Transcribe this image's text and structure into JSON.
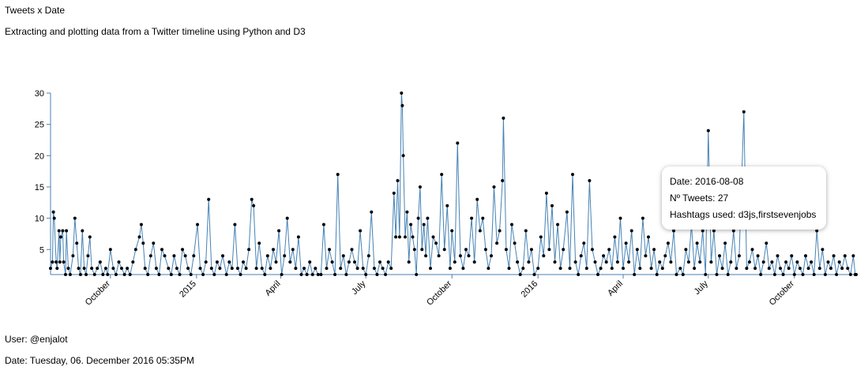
{
  "header": {
    "title": "Tweets x Date",
    "subtitle": "Extracting and plotting data from a Twitter timeline using Python and D3"
  },
  "footer": {
    "user": "User: @enjalot",
    "date": "Date: Tuesday, 06. December 2016 05:35PM"
  },
  "tooltip": {
    "date_line": "Date: 2016-08-08",
    "tweets_line": "Nº Tweets: 27",
    "hashtags_line": "Hashtags used: d3js,firstsevenjobs"
  },
  "colors": {
    "line": "#4682b4",
    "axis": "#4682b4",
    "point": "#000000"
  },
  "chart_data": {
    "type": "line",
    "ylim": [
      1,
      30
    ],
    "y_ticks": [
      5,
      10,
      15,
      20,
      25,
      30
    ],
    "x_range": [
      "2014-07-29",
      "2016-12-06"
    ],
    "x_ticks": [
      {
        "label": "October",
        "date": "2014-10-01"
      },
      {
        "label": "2015",
        "date": "2015-01-01"
      },
      {
        "label": "April",
        "date": "2015-04-01"
      },
      {
        "label": "July",
        "date": "2015-07-01"
      },
      {
        "label": "October",
        "date": "2015-10-01"
      },
      {
        "label": "2016",
        "date": "2016-01-01"
      },
      {
        "label": "April",
        "date": "2016-04-01"
      },
      {
        "label": "July",
        "date": "2016-07-01"
      },
      {
        "label": "October",
        "date": "2016-10-01"
      }
    ],
    "grid": false,
    "points": [
      [
        "2014-07-29",
        2
      ],
      [
        "2014-07-31",
        3
      ],
      [
        "2014-08-01",
        11
      ],
      [
        "2014-08-02",
        10
      ],
      [
        "2014-08-04",
        3
      ],
      [
        "2014-08-05",
        2
      ],
      [
        "2014-08-07",
        8
      ],
      [
        "2014-08-08",
        3
      ],
      [
        "2014-08-09",
        7
      ],
      [
        "2014-08-11",
        8
      ],
      [
        "2014-08-12",
        3
      ],
      [
        "2014-08-14",
        1
      ],
      [
        "2014-08-15",
        8
      ],
      [
        "2014-08-17",
        2
      ],
      [
        "2014-08-19",
        1
      ],
      [
        "2014-08-22",
        4
      ],
      [
        "2014-08-24",
        10
      ],
      [
        "2014-08-26",
        6
      ],
      [
        "2014-08-28",
        2
      ],
      [
        "2014-08-30",
        1
      ],
      [
        "2014-09-01",
        8
      ],
      [
        "2014-09-03",
        2
      ],
      [
        "2014-09-05",
        1
      ],
      [
        "2014-09-07",
        4
      ],
      [
        "2014-09-09",
        7
      ],
      [
        "2014-09-11",
        2
      ],
      [
        "2014-09-14",
        1
      ],
      [
        "2014-09-17",
        2
      ],
      [
        "2014-09-20",
        3
      ],
      [
        "2014-09-23",
        1
      ],
      [
        "2014-09-26",
        2
      ],
      [
        "2014-09-28",
        1
      ],
      [
        "2014-10-01",
        5
      ],
      [
        "2014-10-04",
        2
      ],
      [
        "2014-10-07",
        1
      ],
      [
        "2014-10-10",
        3
      ],
      [
        "2014-10-13",
        2
      ],
      [
        "2014-10-16",
        1
      ],
      [
        "2014-10-19",
        2
      ],
      [
        "2014-10-22",
        1
      ],
      [
        "2014-10-25",
        3
      ],
      [
        "2014-10-28",
        5
      ],
      [
        "2014-11-01",
        7
      ],
      [
        "2014-11-03",
        9
      ],
      [
        "2014-11-05",
        6
      ],
      [
        "2014-11-07",
        2
      ],
      [
        "2014-11-10",
        1
      ],
      [
        "2014-11-13",
        4
      ],
      [
        "2014-11-16",
        6
      ],
      [
        "2014-11-19",
        2
      ],
      [
        "2014-11-22",
        1
      ],
      [
        "2014-11-25",
        5
      ],
      [
        "2014-11-28",
        4
      ],
      [
        "2014-12-02",
        2
      ],
      [
        "2014-12-05",
        1
      ],
      [
        "2014-12-08",
        4
      ],
      [
        "2014-12-11",
        2
      ],
      [
        "2014-12-14",
        1
      ],
      [
        "2014-12-17",
        5
      ],
      [
        "2014-12-20",
        4
      ],
      [
        "2014-12-23",
        2
      ],
      [
        "2014-12-26",
        1
      ],
      [
        "2014-12-29",
        4
      ],
      [
        "2015-01-02",
        9
      ],
      [
        "2015-01-05",
        2
      ],
      [
        "2015-01-08",
        1
      ],
      [
        "2015-01-11",
        3
      ],
      [
        "2015-01-14",
        13
      ],
      [
        "2015-01-17",
        2
      ],
      [
        "2015-01-20",
        1
      ],
      [
        "2015-01-23",
        3
      ],
      [
        "2015-01-26",
        2
      ],
      [
        "2015-01-29",
        4
      ],
      [
        "2015-02-02",
        1
      ],
      [
        "2015-02-05",
        3
      ],
      [
        "2015-02-08",
        2
      ],
      [
        "2015-02-11",
        9
      ],
      [
        "2015-02-14",
        2
      ],
      [
        "2015-02-17",
        1
      ],
      [
        "2015-02-20",
        3
      ],
      [
        "2015-02-23",
        2
      ],
      [
        "2015-02-26",
        5
      ],
      [
        "2015-03-01",
        13
      ],
      [
        "2015-03-03",
        12
      ],
      [
        "2015-03-06",
        2
      ],
      [
        "2015-03-09",
        6
      ],
      [
        "2015-03-12",
        2
      ],
      [
        "2015-03-15",
        1
      ],
      [
        "2015-03-18",
        4
      ],
      [
        "2015-03-21",
        2
      ],
      [
        "2015-03-24",
        5
      ],
      [
        "2015-03-27",
        3
      ],
      [
        "2015-03-30",
        8
      ],
      [
        "2015-04-02",
        1
      ],
      [
        "2015-04-05",
        4
      ],
      [
        "2015-04-08",
        10
      ],
      [
        "2015-04-11",
        3
      ],
      [
        "2015-04-14",
        5
      ],
      [
        "2015-04-17",
        2
      ],
      [
        "2015-04-20",
        7
      ],
      [
        "2015-04-23",
        1
      ],
      [
        "2015-04-26",
        2
      ],
      [
        "2015-04-29",
        1
      ],
      [
        "2015-05-02",
        3
      ],
      [
        "2015-05-05",
        1
      ],
      [
        "2015-05-08",
        2
      ],
      [
        "2015-05-11",
        1
      ],
      [
        "2015-05-14",
        1
      ],
      [
        "2015-05-17",
        9
      ],
      [
        "2015-05-20",
        2
      ],
      [
        "2015-05-23",
        5
      ],
      [
        "2015-05-26",
        3
      ],
      [
        "2015-05-29",
        1
      ],
      [
        "2015-06-01",
        17
      ],
      [
        "2015-06-04",
        2
      ],
      [
        "2015-06-07",
        4
      ],
      [
        "2015-06-10",
        1
      ],
      [
        "2015-06-13",
        3
      ],
      [
        "2015-06-16",
        5
      ],
      [
        "2015-06-19",
        3
      ],
      [
        "2015-06-22",
        2
      ],
      [
        "2015-06-25",
        8
      ],
      [
        "2015-06-28",
        2
      ],
      [
        "2015-07-01",
        1
      ],
      [
        "2015-07-04",
        4
      ],
      [
        "2015-07-07",
        11
      ],
      [
        "2015-07-10",
        2
      ],
      [
        "2015-07-13",
        1
      ],
      [
        "2015-07-16",
        3
      ],
      [
        "2015-07-19",
        2
      ],
      [
        "2015-07-22",
        1
      ],
      [
        "2015-07-25",
        3
      ],
      [
        "2015-07-28",
        2
      ],
      [
        "2015-07-31",
        14
      ],
      [
        "2015-08-02",
        7
      ],
      [
        "2015-08-04",
        16
      ],
      [
        "2015-08-06",
        7
      ],
      [
        "2015-08-08",
        30
      ],
      [
        "2015-08-09",
        28
      ],
      [
        "2015-08-10",
        20
      ],
      [
        "2015-08-12",
        7
      ],
      [
        "2015-08-14",
        11
      ],
      [
        "2015-08-16",
        3
      ],
      [
        "2015-08-18",
        9
      ],
      [
        "2015-08-20",
        7
      ],
      [
        "2015-08-22",
        5
      ],
      [
        "2015-08-24",
        1
      ],
      [
        "2015-08-26",
        10
      ],
      [
        "2015-08-28",
        15
      ],
      [
        "2015-08-30",
        5
      ],
      [
        "2015-09-01",
        9
      ],
      [
        "2015-09-03",
        4
      ],
      [
        "2015-09-05",
        10
      ],
      [
        "2015-09-08",
        2
      ],
      [
        "2015-09-11",
        7
      ],
      [
        "2015-09-14",
        6
      ],
      [
        "2015-09-17",
        4
      ],
      [
        "2015-09-20",
        17
      ],
      [
        "2015-09-23",
        5
      ],
      [
        "2015-09-26",
        12
      ],
      [
        "2015-09-29",
        2
      ],
      [
        "2015-10-01",
        8
      ],
      [
        "2015-10-04",
        3
      ],
      [
        "2015-10-07",
        22
      ],
      [
        "2015-10-10",
        4
      ],
      [
        "2015-10-13",
        2
      ],
      [
        "2015-10-16",
        5
      ],
      [
        "2015-10-19",
        4
      ],
      [
        "2015-10-22",
        10
      ],
      [
        "2015-10-25",
        3
      ],
      [
        "2015-10-28",
        13
      ],
      [
        "2015-10-31",
        8
      ],
      [
        "2015-11-03",
        10
      ],
      [
        "2015-11-06",
        5
      ],
      [
        "2015-11-09",
        2
      ],
      [
        "2015-11-12",
        4
      ],
      [
        "2015-11-15",
        15
      ],
      [
        "2015-11-18",
        6
      ],
      [
        "2015-11-21",
        8
      ],
      [
        "2015-11-24",
        16
      ],
      [
        "2015-11-25",
        26
      ],
      [
        "2015-11-28",
        5
      ],
      [
        "2015-12-01",
        2
      ],
      [
        "2015-12-04",
        9
      ],
      [
        "2015-12-07",
        6
      ],
      [
        "2015-12-10",
        3
      ],
      [
        "2015-12-13",
        1
      ],
      [
        "2015-12-16",
        2
      ],
      [
        "2015-12-19",
        8
      ],
      [
        "2015-12-22",
        3
      ],
      [
        "2015-12-25",
        5
      ],
      [
        "2015-12-28",
        1
      ],
      [
        "2016-01-01",
        2
      ],
      [
        "2016-01-04",
        7
      ],
      [
        "2016-01-07",
        4
      ],
      [
        "2016-01-10",
        14
      ],
      [
        "2016-01-13",
        5
      ],
      [
        "2016-01-16",
        12
      ],
      [
        "2016-01-19",
        3
      ],
      [
        "2016-01-22",
        9
      ],
      [
        "2016-01-25",
        2
      ],
      [
        "2016-01-28",
        5
      ],
      [
        "2016-02-01",
        11
      ],
      [
        "2016-02-04",
        2
      ],
      [
        "2016-02-07",
        17
      ],
      [
        "2016-02-10",
        3
      ],
      [
        "2016-02-13",
        1
      ],
      [
        "2016-02-16",
        4
      ],
      [
        "2016-02-19",
        6
      ],
      [
        "2016-02-22",
        2
      ],
      [
        "2016-02-25",
        16
      ],
      [
        "2016-02-28",
        5
      ],
      [
        "2016-03-02",
        3
      ],
      [
        "2016-03-05",
        1
      ],
      [
        "2016-03-08",
        2
      ],
      [
        "2016-03-11",
        4
      ],
      [
        "2016-03-14",
        3
      ],
      [
        "2016-03-17",
        5
      ],
      [
        "2016-03-20",
        2
      ],
      [
        "2016-03-23",
        7
      ],
      [
        "2016-03-26",
        3
      ],
      [
        "2016-03-29",
        10
      ],
      [
        "2016-04-01",
        2
      ],
      [
        "2016-04-04",
        6
      ],
      [
        "2016-04-07",
        3
      ],
      [
        "2016-04-10",
        8
      ],
      [
        "2016-04-13",
        1
      ],
      [
        "2016-04-16",
        5
      ],
      [
        "2016-04-19",
        2
      ],
      [
        "2016-04-22",
        10
      ],
      [
        "2016-04-25",
        4
      ],
      [
        "2016-04-28",
        7
      ],
      [
        "2016-05-01",
        2
      ],
      [
        "2016-05-04",
        5
      ],
      [
        "2016-05-07",
        1
      ],
      [
        "2016-05-10",
        3
      ],
      [
        "2016-05-13",
        2
      ],
      [
        "2016-05-16",
        4
      ],
      [
        "2016-05-19",
        6
      ],
      [
        "2016-05-22",
        3
      ],
      [
        "2016-05-25",
        8
      ],
      [
        "2016-05-28",
        1
      ],
      [
        "2016-06-01",
        2
      ],
      [
        "2016-06-04",
        1
      ],
      [
        "2016-06-07",
        5
      ],
      [
        "2016-06-10",
        3
      ],
      [
        "2016-06-13",
        9
      ],
      [
        "2016-06-16",
        2
      ],
      [
        "2016-06-19",
        6
      ],
      [
        "2016-06-22",
        3
      ],
      [
        "2016-06-25",
        8
      ],
      [
        "2016-06-28",
        1
      ],
      [
        "2016-07-01",
        24
      ],
      [
        "2016-07-04",
        3
      ],
      [
        "2016-07-07",
        8
      ],
      [
        "2016-07-10",
        1
      ],
      [
        "2016-07-13",
        4
      ],
      [
        "2016-07-16",
        2
      ],
      [
        "2016-07-19",
        6
      ],
      [
        "2016-07-22",
        1
      ],
      [
        "2016-07-25",
        3
      ],
      [
        "2016-07-28",
        8
      ],
      [
        "2016-07-31",
        2
      ],
      [
        "2016-08-03",
        4
      ],
      [
        "2016-08-08",
        27
      ],
      [
        "2016-08-11",
        2
      ],
      [
        "2016-08-14",
        3
      ],
      [
        "2016-08-17",
        5
      ],
      [
        "2016-08-20",
        2
      ],
      [
        "2016-08-23",
        4
      ],
      [
        "2016-08-26",
        1
      ],
      [
        "2016-08-29",
        3
      ],
      [
        "2016-09-01",
        6
      ],
      [
        "2016-09-04",
        2
      ],
      [
        "2016-09-07",
        3
      ],
      [
        "2016-09-10",
        1
      ],
      [
        "2016-09-13",
        4
      ],
      [
        "2016-09-16",
        2
      ],
      [
        "2016-09-19",
        1
      ],
      [
        "2016-09-22",
        3
      ],
      [
        "2016-09-25",
        2
      ],
      [
        "2016-09-28",
        4
      ],
      [
        "2016-10-01",
        1
      ],
      [
        "2016-10-04",
        3
      ],
      [
        "2016-10-07",
        2
      ],
      [
        "2016-10-10",
        1
      ],
      [
        "2016-10-13",
        4
      ],
      [
        "2016-10-16",
        2
      ],
      [
        "2016-10-19",
        3
      ],
      [
        "2016-10-22",
        1
      ],
      [
        "2016-10-25",
        8
      ],
      [
        "2016-10-28",
        2
      ],
      [
        "2016-10-31",
        5
      ],
      [
        "2016-11-03",
        1
      ],
      [
        "2016-11-06",
        3
      ],
      [
        "2016-11-09",
        2
      ],
      [
        "2016-11-12",
        4
      ],
      [
        "2016-11-15",
        1
      ],
      [
        "2016-11-18",
        3
      ],
      [
        "2016-11-21",
        2
      ],
      [
        "2016-11-24",
        4
      ],
      [
        "2016-11-27",
        2
      ],
      [
        "2016-11-30",
        1
      ],
      [
        "2016-12-03",
        4
      ],
      [
        "2016-12-05",
        1
      ],
      [
        "2016-12-06",
        1
      ]
    ]
  }
}
